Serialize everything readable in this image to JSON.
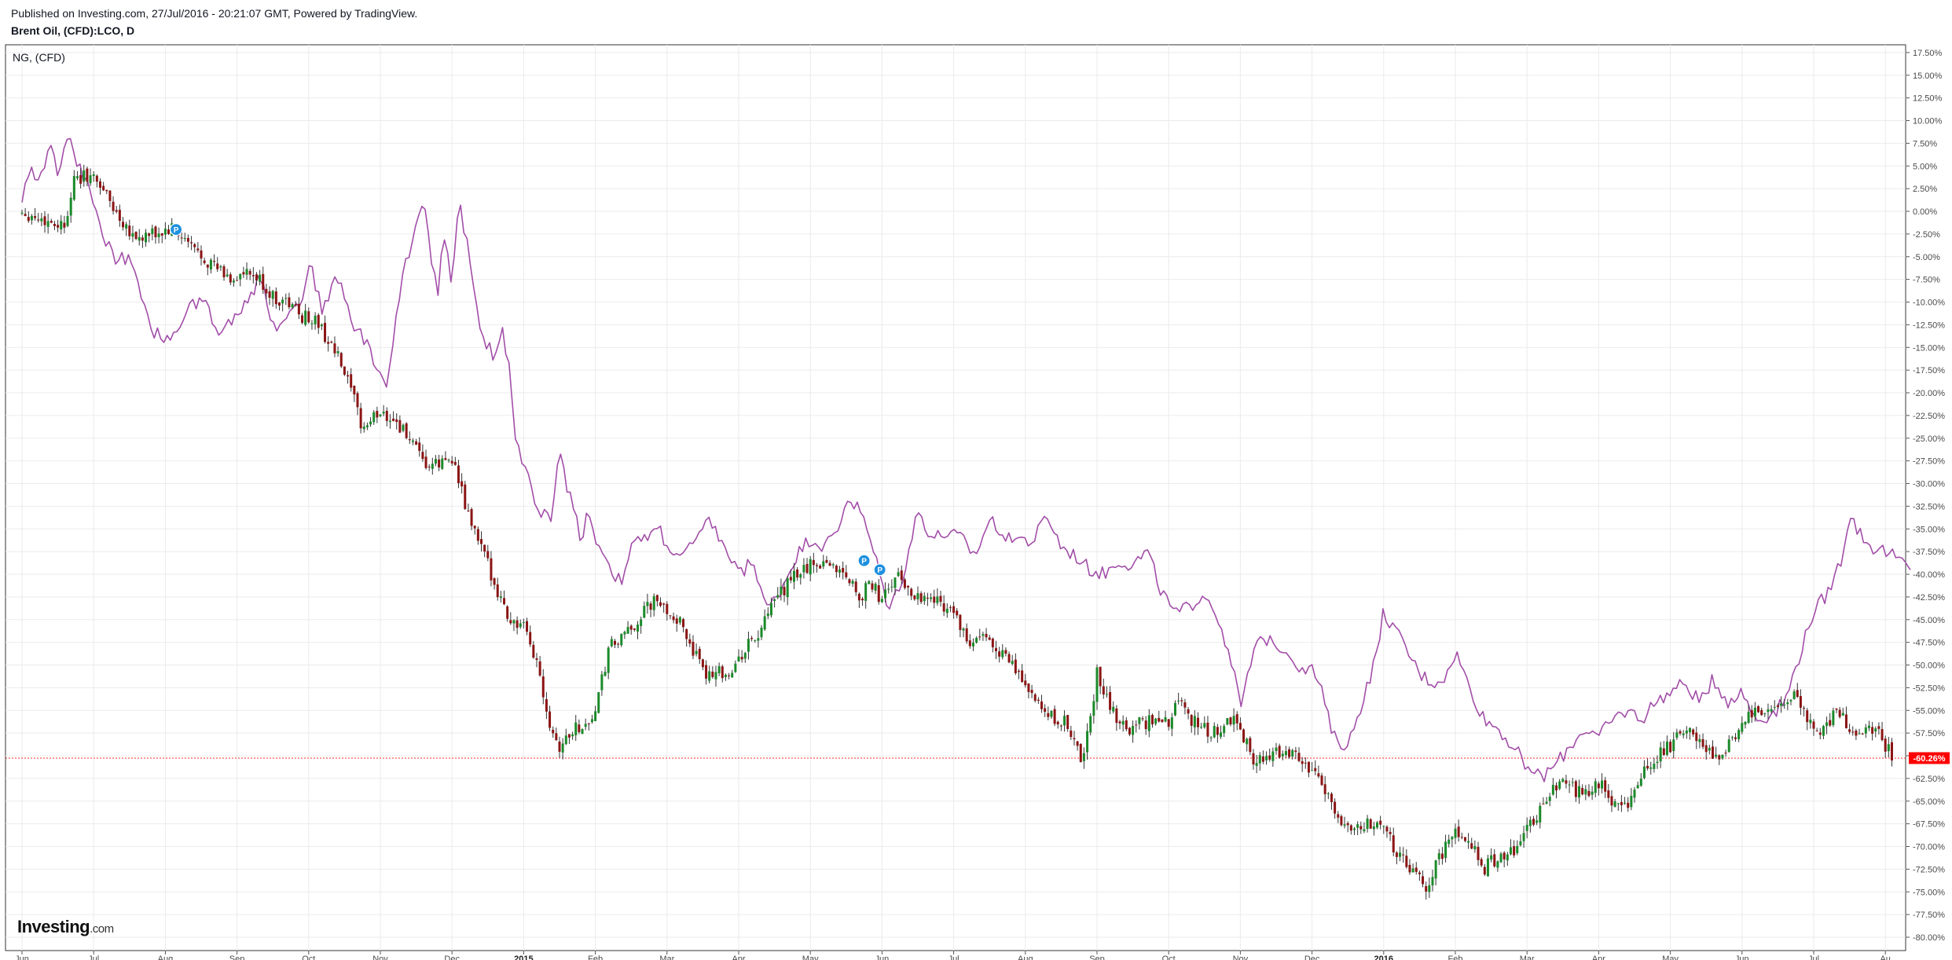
{
  "header": {
    "published": "Published on Investing.com, 27/Jul/2016 - 20:21:07 GMT, Powered by TradingView.",
    "symbol": "Brent Oil, (CFD):LCO, D"
  },
  "legend": {
    "compare_symbol": "NG,  (CFD)"
  },
  "brand": {
    "name": "Investing",
    "suffix": ".com"
  },
  "colors": {
    "up": "#1b8a2a",
    "down": "#8b1414",
    "compare_line": "#a24ea8",
    "last_value_line": "#ff2a2a",
    "last_value_badge": "#ff0000",
    "marker": "#1e90e0"
  },
  "chart_data": {
    "type": "line",
    "y_unit": "%",
    "ylim": [
      -80,
      17.5
    ],
    "y_ticks": [
      "17.50%",
      "15.00%",
      "12.50%",
      "10.00%",
      "7.50%",
      "5.00%",
      "2.50%",
      "0.00%",
      "-2.50%",
      "-5.00%",
      "-7.50%",
      "-10.00%",
      "-12.50%",
      "-15.00%",
      "-17.50%",
      "-20.00%",
      "-22.50%",
      "-25.00%",
      "-27.50%",
      "-30.00%",
      "-32.50%",
      "-35.00%",
      "-37.50%",
      "-40.00%",
      "-42.50%",
      "-45.00%",
      "-47.50%",
      "-50.00%",
      "-52.50%",
      "-55.00%",
      "-57.50%",
      "-60.00%",
      "-62.50%",
      "-65.00%",
      "-67.50%",
      "-70.00%",
      "-72.50%",
      "-75.00%",
      "-77.50%",
      "-80.00%"
    ],
    "x_ticks": [
      {
        "label": "Jun",
        "t": 0.0
      },
      {
        "label": "Jul",
        "t": 1.0
      },
      {
        "label": "Aug",
        "t": 2.0
      },
      {
        "label": "Sep",
        "t": 3.0
      },
      {
        "label": "Oct",
        "t": 4.0
      },
      {
        "label": "Nov",
        "t": 5.0
      },
      {
        "label": "Dec",
        "t": 6.0
      },
      {
        "label": "2015",
        "t": 7.0,
        "bold": true
      },
      {
        "label": "Feb",
        "t": 8.0
      },
      {
        "label": "Mar",
        "t": 9.0
      },
      {
        "label": "Apr",
        "t": 10.0
      },
      {
        "label": "May",
        "t": 11.0
      },
      {
        "label": "Jun",
        "t": 12.0
      },
      {
        "label": "Jul",
        "t": 13.0
      },
      {
        "label": "Aug",
        "t": 14.0
      },
      {
        "label": "Sep",
        "t": 15.0
      },
      {
        "label": "Oct",
        "t": 16.0
      },
      {
        "label": "Nov",
        "t": 17.0
      },
      {
        "label": "Dec",
        "t": 18.0
      },
      {
        "label": "2016",
        "t": 19.0,
        "bold": true
      },
      {
        "label": "Feb",
        "t": 20.0
      },
      {
        "label": "Mar",
        "t": 21.0
      },
      {
        "label": "Apr",
        "t": 22.0
      },
      {
        "label": "May",
        "t": 23.0
      },
      {
        "label": "Jun",
        "t": 24.0
      },
      {
        "label": "Jul",
        "t": 25.0
      },
      {
        "label": "Au",
        "t": 26.0
      }
    ],
    "last_value": {
      "label": "-60.26%",
      "y": -60.26
    },
    "series": [
      {
        "role": "main",
        "style": "candlestick",
        "points": [
          [
            0.0,
            0
          ],
          [
            0.3,
            -1
          ],
          [
            0.6,
            -1.5
          ],
          [
            0.7,
            3
          ],
          [
            0.9,
            4
          ],
          [
            1.1,
            3
          ],
          [
            1.3,
            0
          ],
          [
            1.6,
            -3
          ],
          [
            1.9,
            -2.5
          ],
          [
            2.1,
            -2
          ],
          [
            2.3,
            -3.5
          ],
          [
            2.6,
            -5.5
          ],
          [
            2.9,
            -7.5
          ],
          [
            3.1,
            -7
          ],
          [
            3.3,
            -7.5
          ],
          [
            3.5,
            -9.5
          ],
          [
            3.7,
            -10
          ],
          [
            3.9,
            -11.5
          ],
          [
            4.1,
            -12
          ],
          [
            4.4,
            -16
          ],
          [
            4.6,
            -20
          ],
          [
            4.75,
            -24
          ],
          [
            5.0,
            -22
          ],
          [
            5.2,
            -23
          ],
          [
            5.4,
            -25
          ],
          [
            5.6,
            -28
          ],
          [
            5.8,
            -28
          ],
          [
            6.0,
            -27
          ],
          [
            6.2,
            -33
          ],
          [
            6.4,
            -37
          ],
          [
            6.6,
            -41
          ],
          [
            6.8,
            -45
          ],
          [
            7.0,
            -46
          ],
          [
            7.2,
            -50
          ],
          [
            7.35,
            -56
          ],
          [
            7.5,
            -59
          ],
          [
            7.7,
            -57
          ],
          [
            7.9,
            -56.5
          ],
          [
            8.0,
            -55
          ],
          [
            8.2,
            -48
          ],
          [
            8.4,
            -47
          ],
          [
            8.6,
            -45
          ],
          [
            8.8,
            -43
          ],
          [
            9.1,
            -44.5
          ],
          [
            9.3,
            -47
          ],
          [
            9.5,
            -51
          ],
          [
            9.7,
            -50.5
          ],
          [
            9.9,
            -51
          ],
          [
            10.1,
            -48
          ],
          [
            10.3,
            -46.5
          ],
          [
            10.5,
            -43
          ],
          [
            10.8,
            -40
          ],
          [
            11.0,
            -39
          ],
          [
            11.2,
            -38.5
          ],
          [
            11.5,
            -40
          ],
          [
            11.7,
            -42.5
          ],
          [
            11.85,
            -41
          ],
          [
            12.0,
            -43
          ],
          [
            12.2,
            -40
          ],
          [
            12.4,
            -42
          ],
          [
            12.6,
            -42.5
          ],
          [
            12.8,
            -43
          ],
          [
            13.0,
            -44
          ],
          [
            13.2,
            -48
          ],
          [
            13.4,
            -47
          ],
          [
            13.6,
            -48
          ],
          [
            13.8,
            -50
          ],
          [
            14.0,
            -52
          ],
          [
            14.2,
            -55
          ],
          [
            14.4,
            -56
          ],
          [
            14.6,
            -56.5
          ],
          [
            14.8,
            -61
          ],
          [
            15.0,
            -51
          ],
          [
            15.2,
            -55
          ],
          [
            15.4,
            -57
          ],
          [
            15.6,
            -56.5
          ],
          [
            15.8,
            -56
          ],
          [
            16.0,
            -56.5
          ],
          [
            16.15,
            -53
          ],
          [
            16.3,
            -56
          ],
          [
            16.5,
            -57
          ],
          [
            16.7,
            -57.5
          ],
          [
            16.9,
            -56
          ],
          [
            17.0,
            -57
          ],
          [
            17.2,
            -60.5
          ],
          [
            17.4,
            -60.5
          ],
          [
            17.6,
            -59
          ],
          [
            17.8,
            -60
          ],
          [
            18.0,
            -62
          ],
          [
            18.2,
            -64
          ],
          [
            18.4,
            -67
          ],
          [
            18.6,
            -68
          ],
          [
            18.8,
            -67.5
          ],
          [
            19.0,
            -67.5
          ],
          [
            19.2,
            -71
          ],
          [
            19.4,
            -73
          ],
          [
            19.6,
            -74.5
          ],
          [
            19.8,
            -71
          ],
          [
            20.0,
            -68.5
          ],
          [
            20.2,
            -69
          ],
          [
            20.4,
            -72.5
          ],
          [
            20.6,
            -71
          ],
          [
            20.8,
            -70.5
          ],
          [
            21.0,
            -68
          ],
          [
            21.2,
            -66
          ],
          [
            21.4,
            -63
          ],
          [
            21.6,
            -63.5
          ],
          [
            21.8,
            -64.5
          ],
          [
            22.0,
            -63
          ],
          [
            22.2,
            -65
          ],
          [
            22.4,
            -65.5
          ],
          [
            22.6,
            -62
          ],
          [
            22.8,
            -60
          ],
          [
            23.0,
            -59
          ],
          [
            23.2,
            -57
          ],
          [
            23.5,
            -59
          ],
          [
            23.7,
            -60.5
          ],
          [
            23.9,
            -57.5
          ],
          [
            24.1,
            -55.5
          ],
          [
            24.3,
            -55.5
          ],
          [
            24.5,
            -55
          ],
          [
            24.7,
            -53
          ],
          [
            24.9,
            -56
          ],
          [
            25.1,
            -57.5
          ],
          [
            25.3,
            -55
          ],
          [
            25.5,
            -57
          ],
          [
            25.7,
            -57
          ],
          [
            25.9,
            -57.5
          ],
          [
            26.1,
            -60.26
          ]
        ]
      },
      {
        "role": "compare",
        "name": "NG,  (CFD)",
        "style": "line",
        "points": [
          [
            0.0,
            1
          ],
          [
            0.1,
            5
          ],
          [
            0.2,
            3
          ],
          [
            0.4,
            7
          ],
          [
            0.5,
            4
          ],
          [
            0.6,
            8
          ],
          [
            0.7,
            7
          ],
          [
            0.9,
            3
          ],
          [
            1.1,
            -2
          ],
          [
            1.3,
            -5
          ],
          [
            1.5,
            -5.5
          ],
          [
            1.6,
            -8
          ],
          [
            1.8,
            -13
          ],
          [
            2.0,
            -14
          ],
          [
            2.2,
            -13
          ],
          [
            2.4,
            -10
          ],
          [
            2.6,
            -10
          ],
          [
            2.7,
            -13.5
          ],
          [
            2.9,
            -12
          ],
          [
            3.0,
            -11
          ],
          [
            3.2,
            -9
          ],
          [
            3.35,
            -7
          ],
          [
            3.5,
            -13
          ],
          [
            3.7,
            -11
          ],
          [
            3.9,
            -10
          ],
          [
            4.0,
            -5.5
          ],
          [
            4.2,
            -11
          ],
          [
            4.4,
            -7
          ],
          [
            4.6,
            -12
          ],
          [
            4.8,
            -14.5
          ],
          [
            5.0,
            -18
          ],
          [
            5.1,
            -19
          ],
          [
            5.3,
            -7.5
          ],
          [
            5.5,
            -1.5
          ],
          [
            5.6,
            2
          ],
          [
            5.7,
            -4.5
          ],
          [
            5.8,
            -9
          ],
          [
            5.9,
            -2
          ],
          [
            6.0,
            -8
          ],
          [
            6.1,
            1
          ],
          [
            6.2,
            -3
          ],
          [
            6.4,
            -14
          ],
          [
            6.6,
            -16
          ],
          [
            6.7,
            -13
          ],
          [
            6.8,
            -17
          ],
          [
            6.9,
            -26
          ],
          [
            7.0,
            -27.5
          ],
          [
            7.2,
            -33
          ],
          [
            7.4,
            -34
          ],
          [
            7.5,
            -26
          ],
          [
            7.6,
            -30
          ],
          [
            7.8,
            -36
          ],
          [
            7.9,
            -33
          ],
          [
            8.0,
            -36
          ],
          [
            8.2,
            -39
          ],
          [
            8.35,
            -41
          ],
          [
            8.5,
            -37
          ],
          [
            8.7,
            -36
          ],
          [
            8.9,
            -35
          ],
          [
            9.0,
            -37
          ],
          [
            9.2,
            -38
          ],
          [
            9.4,
            -36.5
          ],
          [
            9.6,
            -34
          ],
          [
            9.8,
            -37
          ],
          [
            10.0,
            -40
          ],
          [
            10.2,
            -38.5
          ],
          [
            10.4,
            -44
          ],
          [
            10.6,
            -41.5
          ],
          [
            10.8,
            -38
          ],
          [
            11.0,
            -36
          ],
          [
            11.2,
            -37
          ],
          [
            11.4,
            -35
          ],
          [
            11.5,
            -31.5
          ],
          [
            11.7,
            -33
          ],
          [
            11.9,
            -38
          ],
          [
            12.1,
            -44
          ],
          [
            12.3,
            -40
          ],
          [
            12.5,
            -33
          ],
          [
            12.7,
            -36
          ],
          [
            12.9,
            -35.5
          ],
          [
            13.1,
            -36
          ],
          [
            13.3,
            -38
          ],
          [
            13.5,
            -34
          ],
          [
            13.7,
            -35.5
          ],
          [
            13.9,
            -36
          ],
          [
            14.1,
            -36.5
          ],
          [
            14.3,
            -33.5
          ],
          [
            14.5,
            -37
          ],
          [
            14.7,
            -38
          ],
          [
            14.9,
            -39.5
          ],
          [
            15.1,
            -40
          ],
          [
            15.3,
            -38.5
          ],
          [
            15.5,
            -39
          ],
          [
            15.7,
            -37.5
          ],
          [
            15.9,
            -42
          ],
          [
            16.1,
            -44.5
          ],
          [
            16.3,
            -43.5
          ],
          [
            16.5,
            -42
          ],
          [
            16.7,
            -45
          ],
          [
            16.9,
            -50
          ],
          [
            17.0,
            -55
          ],
          [
            17.2,
            -48
          ],
          [
            17.4,
            -47
          ],
          [
            17.6,
            -48
          ],
          [
            17.8,
            -50
          ],
          [
            18.0,
            -50.5
          ],
          [
            18.1,
            -52
          ],
          [
            18.3,
            -58
          ],
          [
            18.5,
            -59
          ],
          [
            18.7,
            -54
          ],
          [
            18.9,
            -49
          ],
          [
            19.0,
            -44
          ],
          [
            19.1,
            -45.5
          ],
          [
            19.3,
            -48
          ],
          [
            19.5,
            -51
          ],
          [
            19.7,
            -52
          ],
          [
            19.9,
            -51
          ],
          [
            20.0,
            -48.5
          ],
          [
            20.2,
            -52.5
          ],
          [
            20.4,
            -56
          ],
          [
            20.6,
            -57
          ],
          [
            20.8,
            -59
          ],
          [
            21.0,
            -61
          ],
          [
            21.2,
            -62.5
          ],
          [
            21.4,
            -61
          ],
          [
            21.6,
            -59
          ],
          [
            21.8,
            -57
          ],
          [
            22.0,
            -58
          ],
          [
            22.2,
            -56
          ],
          [
            22.4,
            -55
          ],
          [
            22.6,
            -56
          ],
          [
            22.8,
            -54
          ],
          [
            23.0,
            -53
          ],
          [
            23.2,
            -52
          ],
          [
            23.4,
            -54
          ],
          [
            23.6,
            -51.5
          ],
          [
            23.8,
            -54
          ],
          [
            24.0,
            -53
          ],
          [
            24.2,
            -56
          ],
          [
            24.4,
            -55.5
          ],
          [
            24.6,
            -54
          ],
          [
            24.8,
            -49
          ],
          [
            25.0,
            -44
          ],
          [
            25.2,
            -42
          ],
          [
            25.4,
            -38
          ],
          [
            25.5,
            -33
          ],
          [
            25.6,
            -35
          ],
          [
            25.8,
            -37
          ],
          [
            26.0,
            -37.5
          ],
          [
            26.2,
            -38.5
          ],
          [
            26.35,
            -39.5
          ]
        ]
      }
    ],
    "markers": [
      {
        "label": "P",
        "t": 2.15,
        "y": -2
      },
      {
        "label": "P",
        "t": 11.75,
        "y": -38.5
      },
      {
        "label": "P",
        "t": 11.97,
        "y": -39.5
      }
    ]
  }
}
